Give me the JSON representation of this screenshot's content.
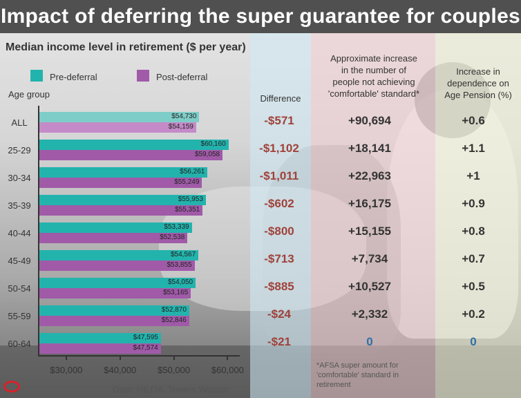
{
  "chart_data": {
    "type": "bar",
    "title": "Impact of deferring the super guarantee for couples",
    "subtitle": "Median income level in retirement ($ per year)",
    "ylabel": "Age group",
    "categories": [
      "ALL",
      "25-29",
      "30-34",
      "35-39",
      "40-44",
      "45-49",
      "50-54",
      "55-59",
      "60-64"
    ],
    "series": [
      {
        "name": "Pre-deferral",
        "color": "#23b3ad",
        "values": [
          54730,
          60160,
          56261,
          55953,
          53339,
          54567,
          54050,
          52870,
          47595
        ],
        "labels": [
          "$54,730",
          "$60,160",
          "$56,261",
          "$55,953",
          "$53,339",
          "$54,567",
          "$54,050",
          "$52,870",
          "$47,595"
        ]
      },
      {
        "name": "Post-deferral",
        "color": "#a05aa8",
        "values": [
          54159,
          59058,
          55249,
          55351,
          52538,
          53855,
          53165,
          52846,
          47574
        ],
        "labels": [
          "$54,159",
          "$59,058",
          "$55,249",
          "$55,351",
          "$52,538",
          "$53,855",
          "$53,165",
          "$52,846",
          "$47,574"
        ]
      }
    ],
    "all_row_colors": [
      "#7fcdc8",
      "#c48bc8"
    ],
    "xlim": [
      25000,
      62000
    ],
    "xticks": [
      30000,
      40000,
      50000,
      60000
    ],
    "xtick_labels": [
      "$30,000",
      "$40,000",
      "$50,000",
      "$60,000"
    ],
    "grid": false
  },
  "columns": {
    "difference_header": "Difference",
    "difference": [
      "-$571",
      "-$1,102",
      "-$1,011",
      "-$602",
      "-$800",
      "-$713",
      "-$885",
      "-$24",
      "-$21"
    ],
    "increase_header": [
      "Approximate increase",
      "in the number of",
      "people not achieving",
      "'comfortable' standard*"
    ],
    "increase": [
      "+90,694",
      "+18,141",
      "+22,963",
      "+16,175",
      "+15,155",
      "+7,734",
      "+10,527",
      "+2,332",
      "0"
    ],
    "dependence_header": [
      "Increase in",
      "dependence on",
      "Age Pension (%)"
    ],
    "dependence": [
      "+0.6",
      "+1.1",
      "+1",
      "+0.9",
      "+0.8",
      "+0.7",
      "+0.5",
      "+0.2",
      "0"
    ],
    "zero_color": "#2e6fa6"
  },
  "footnote": "*AFSA super amount for 'comfortable' standard in retirement",
  "source": "Data: HILDA, Towers Watson"
}
